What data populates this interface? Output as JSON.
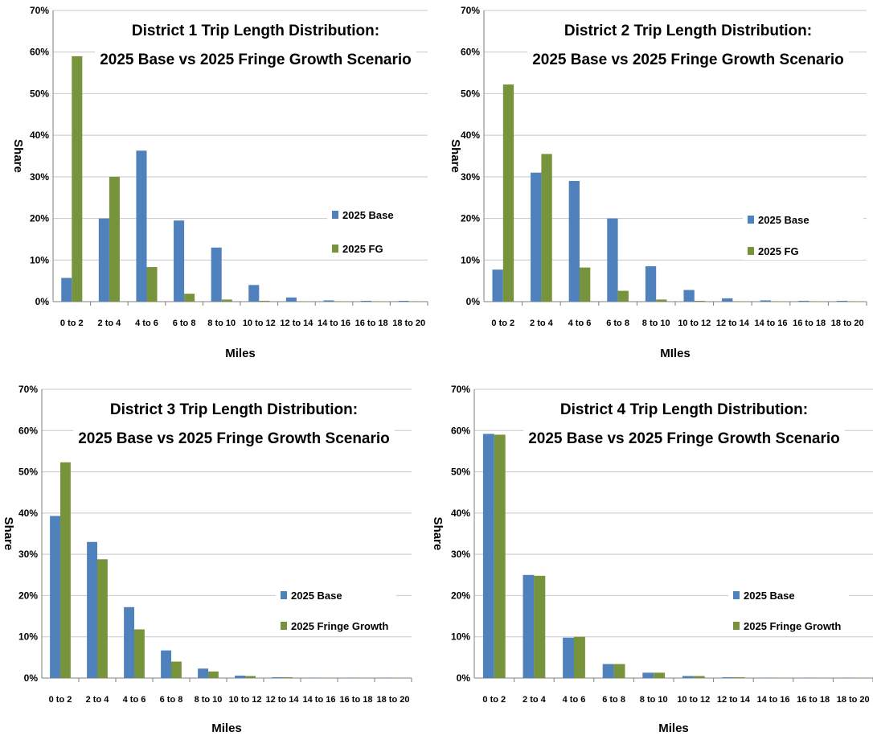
{
  "colors": {
    "base": "#4f81bd",
    "fg": "#77933c"
  },
  "chart_data": [
    {
      "type": "bar",
      "title": [
        "District 1 Trip Length Distribution:",
        "2025 Base vs 2025 Fringe Growth Scenario"
      ],
      "xlabel": "Miles",
      "ylabel": "Share",
      "ylim": [
        0,
        70
      ],
      "yticks": [
        "0%",
        "10%",
        "20%",
        "30%",
        "40%",
        "50%",
        "60%",
        "70%"
      ],
      "categories": [
        "0 to 2",
        "2 to 4",
        "4 to 6",
        "6 to 8",
        "8 to 10",
        "10 to 12",
        "12 to 14",
        "14 to 16",
        "16 to 18",
        "18 to 20"
      ],
      "series": [
        {
          "name": "2025 Base",
          "values": [
            5.7,
            20.0,
            36.3,
            19.5,
            13.0,
            4.0,
            1.0,
            0.3,
            0.2,
            0.2
          ]
        },
        {
          "name": "2025 FG",
          "values": [
            59.0,
            30.0,
            8.3,
            1.9,
            0.5,
            0.2,
            0.1,
            0.1,
            0.1,
            0.1
          ]
        }
      ],
      "grid": true,
      "legend": "right"
    },
    {
      "type": "bar",
      "title": [
        "District 2 Trip Length Distribution:",
        "2025 Base vs 2025 Fringe Growth Scenario"
      ],
      "xlabel": "MIles",
      "ylabel": "Share",
      "ylim": [
        0,
        70
      ],
      "yticks": [
        "0%",
        "10%",
        "20%",
        "30%",
        "40%",
        "50%",
        "60%",
        "70%"
      ],
      "categories": [
        "0 to 2",
        "2 to 4",
        "4 to 6",
        "6 to 8",
        "8 to 10",
        "10 to 12",
        "12 to 14",
        "14 to 16",
        "16 to 18",
        "18 to 20"
      ],
      "series": [
        {
          "name": "2025 Base",
          "values": [
            7.7,
            31.0,
            29.0,
            20.0,
            8.5,
            2.8,
            0.8,
            0.3,
            0.2,
            0.2
          ]
        },
        {
          "name": "2025 FG",
          "values": [
            52.2,
            35.5,
            8.2,
            2.6,
            0.5,
            0.2,
            0.1,
            0.1,
            0.1,
            0.1
          ]
        }
      ],
      "grid": true,
      "legend": "right"
    },
    {
      "type": "bar",
      "title": [
        "District 3 Trip Length Distribution:",
        "2025 Base vs 2025 Fringe Growth Scenario"
      ],
      "xlabel": "Miles",
      "ylabel": "Share",
      "ylim": [
        0,
        70
      ],
      "yticks": [
        "0%",
        "10%",
        "20%",
        "30%",
        "40%",
        "50%",
        "60%",
        "70%"
      ],
      "categories": [
        "0 to 2",
        "2 to 4",
        "4 to 6",
        "6 to 8",
        "8 to 10",
        "10 to 12",
        "12 to 14",
        "14 to 16",
        "16 to 18",
        "18 to 20"
      ],
      "series": [
        {
          "name": "2025 Base",
          "values": [
            39.3,
            33.0,
            17.2,
            6.7,
            2.3,
            0.6,
            0.2,
            0.1,
            0.1,
            0.1
          ]
        },
        {
          "name": "2025 Fringe Growth",
          "values": [
            52.3,
            28.8,
            11.8,
            4.0,
            1.6,
            0.5,
            0.2,
            0.1,
            0.1,
            0.1
          ]
        }
      ],
      "grid": true,
      "legend": "right"
    },
    {
      "type": "bar",
      "title": [
        "District 4 Trip Length Distribution:",
        "2025 Base vs 2025 Fringe Growth Scenario"
      ],
      "xlabel": "Miles",
      "ylabel": "Share",
      "ylim": [
        0,
        70
      ],
      "yticks": [
        "0%",
        "10%",
        "20%",
        "30%",
        "40%",
        "50%",
        "60%",
        "70%"
      ],
      "categories": [
        "0 to 2",
        "2 to 4",
        "4 to 6",
        "6 to 8",
        "8 to 10",
        "10 to 12",
        "12 to 14",
        "14 to 16",
        "16 to 18",
        "18 to 20"
      ],
      "series": [
        {
          "name": "2025 Base",
          "values": [
            59.2,
            25.0,
            9.8,
            3.4,
            1.3,
            0.5,
            0.2,
            0.1,
            0.1,
            0.1
          ]
        },
        {
          "name": "2025 Fringe Growth",
          "values": [
            59.0,
            24.8,
            10.0,
            3.4,
            1.3,
            0.5,
            0.2,
            0.1,
            0.1,
            0.1
          ]
        }
      ],
      "grid": true,
      "legend": "right"
    }
  ]
}
